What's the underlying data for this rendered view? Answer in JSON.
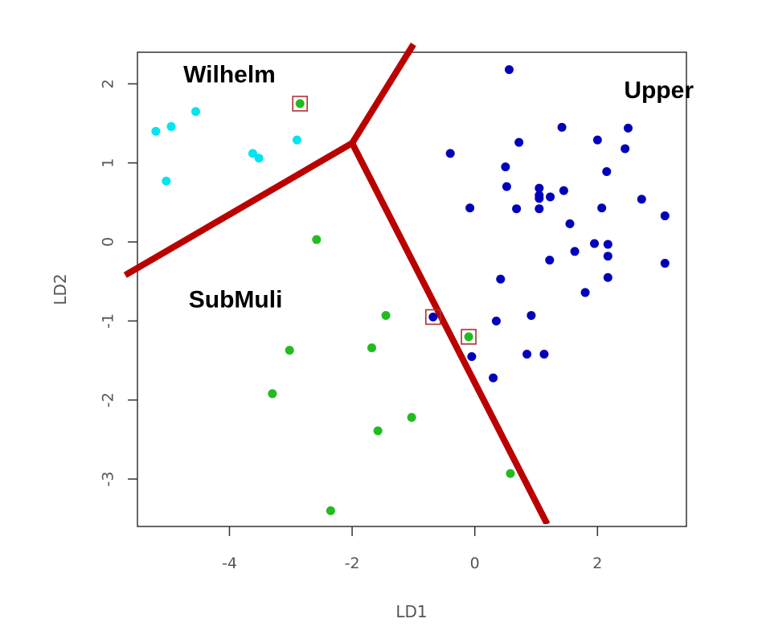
{
  "chart_data": {
    "type": "scatter",
    "xlabel": "LD1",
    "ylabel": "LD2",
    "xlim": [
      -5.5,
      3.45
    ],
    "ylim": [
      -3.6,
      2.4
    ],
    "x_ticks": [
      {
        "value": -4,
        "label": "-4"
      },
      {
        "value": -2,
        "label": "-2"
      },
      {
        "value": 0,
        "label": "0"
      },
      {
        "value": 2,
        "label": "2"
      }
    ],
    "y_ticks": [
      {
        "value": 2,
        "label": "2"
      },
      {
        "value": 1,
        "label": "1"
      },
      {
        "value": 0,
        "label": "0"
      },
      {
        "value": -1,
        "label": "-1"
      },
      {
        "value": -2,
        "label": "-2"
      },
      {
        "value": -3,
        "label": "-3"
      }
    ],
    "region_labels": [
      {
        "text": "Wilhelm",
        "x": -4.0,
        "y": 2.1
      },
      {
        "text": "Upper",
        "x": 3.0,
        "y": 1.9
      },
      {
        "text": "SubMuli",
        "x": -3.9,
        "y": -0.75
      }
    ],
    "boundaries": [
      {
        "color": "#bb0000",
        "points": [
          [
            -5.7,
            -0.42
          ],
          [
            -2.0,
            1.25
          ]
        ]
      },
      {
        "color": "#bb0000",
        "points": [
          [
            -2.0,
            1.25
          ],
          [
            -1.0,
            2.5
          ]
        ]
      },
      {
        "color": "#bb0000",
        "points": [
          [
            -2.0,
            1.25
          ],
          [
            1.18,
            -3.57
          ]
        ]
      }
    ],
    "series": [
      {
        "name": "Wilhelm",
        "color": "#00e5ee",
        "points": [
          [
            -5.2,
            1.4
          ],
          [
            -4.95,
            1.46
          ],
          [
            -4.55,
            1.65
          ],
          [
            -3.62,
            1.12
          ],
          [
            -3.52,
            1.06
          ],
          [
            -2.9,
            1.29
          ],
          [
            -5.03,
            0.77
          ]
        ]
      },
      {
        "name": "SubMuli",
        "color": "#22bb22",
        "points": [
          [
            -2.85,
            1.75
          ],
          [
            -2.58,
            0.03
          ],
          [
            -1.45,
            -0.93
          ],
          [
            -1.68,
            -1.34
          ],
          [
            -3.02,
            -1.37
          ],
          [
            -3.3,
            -1.92
          ],
          [
            -1.03,
            -2.22
          ],
          [
            -1.58,
            -2.39
          ],
          [
            -2.35,
            -3.4
          ],
          [
            0.58,
            -2.93
          ],
          [
            -0.1,
            -1.2
          ]
        ]
      },
      {
        "name": "Upper",
        "color": "#0000bb",
        "points": [
          [
            0.56,
            2.18
          ],
          [
            -0.4,
            1.12
          ],
          [
            0.72,
            1.26
          ],
          [
            1.42,
            1.45
          ],
          [
            2.0,
            1.29
          ],
          [
            2.5,
            1.44
          ],
          [
            2.45,
            1.18
          ],
          [
            0.5,
            0.95
          ],
          [
            0.52,
            0.7
          ],
          [
            1.05,
            0.68
          ],
          [
            1.05,
            0.59
          ],
          [
            1.05,
            0.55
          ],
          [
            1.23,
            0.57
          ],
          [
            1.45,
            0.65
          ],
          [
            2.15,
            0.89
          ],
          [
            2.72,
            0.54
          ],
          [
            -0.08,
            0.43
          ],
          [
            0.68,
            0.42
          ],
          [
            1.05,
            0.42
          ],
          [
            2.07,
            0.43
          ],
          [
            3.1,
            0.33
          ],
          [
            1.55,
            0.23
          ],
          [
            1.95,
            -0.02
          ],
          [
            2.17,
            -0.03
          ],
          [
            1.63,
            -0.12
          ],
          [
            2.17,
            -0.18
          ],
          [
            1.22,
            -0.23
          ],
          [
            3.1,
            -0.27
          ],
          [
            0.42,
            -0.47
          ],
          [
            2.17,
            -0.45
          ],
          [
            1.8,
            -0.64
          ],
          [
            0.92,
            -0.93
          ],
          [
            0.35,
            -1.0
          ],
          [
            -0.05,
            -1.45
          ],
          [
            0.85,
            -1.42
          ],
          [
            1.13,
            -1.42
          ],
          [
            0.3,
            -1.72
          ],
          [
            -0.68,
            -0.95
          ]
        ]
      }
    ],
    "highlighted_points": [
      [
        -2.85,
        1.75
      ],
      [
        -0.68,
        -0.95
      ],
      [
        -0.1,
        -1.2
      ]
    ]
  }
}
